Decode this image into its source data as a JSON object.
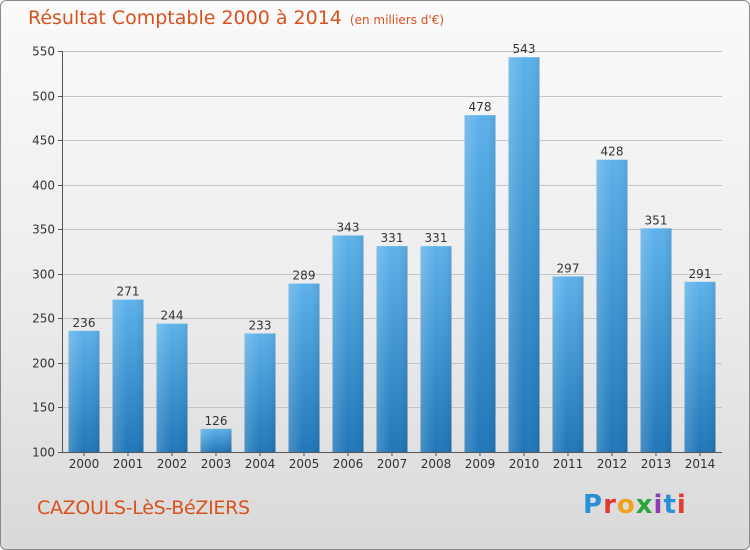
{
  "title": "Résultat Comptable 2000 à 2014",
  "subtitle": "(en milliers d'€)",
  "commune": "CAZOULS-LèS-BéZIERS",
  "brand": {
    "letters": [
      "P",
      "r",
      "o",
      "x",
      "i",
      "t",
      "i"
    ],
    "colors": [
      "#2a8fd6",
      "#e23b2f",
      "#f0a21a",
      "#2aa53c",
      "#8b3fb3",
      "#2a8fd6",
      "#e23b2f"
    ]
  },
  "colors": {
    "accent": "#d8521e",
    "bar_light": "#5aaee6",
    "bar_dark": "#1e73b5"
  },
  "chart_data": {
    "type": "bar",
    "title": "Résultat Comptable 2000 à 2014",
    "xlabel": "",
    "ylabel": "",
    "categories": [
      "2000",
      "2001",
      "2002",
      "2003",
      "2004",
      "2005",
      "2006",
      "2007",
      "2008",
      "2009",
      "2010",
      "2011",
      "2012",
      "2013",
      "2014"
    ],
    "values": [
      236,
      271,
      244,
      126,
      233,
      289,
      343,
      331,
      331,
      478,
      543,
      297,
      428,
      351,
      291
    ],
    "ylim": [
      100,
      550
    ],
    "yticks": [
      100,
      150,
      200,
      250,
      300,
      350,
      400,
      450,
      500,
      550
    ],
    "grid": true
  }
}
